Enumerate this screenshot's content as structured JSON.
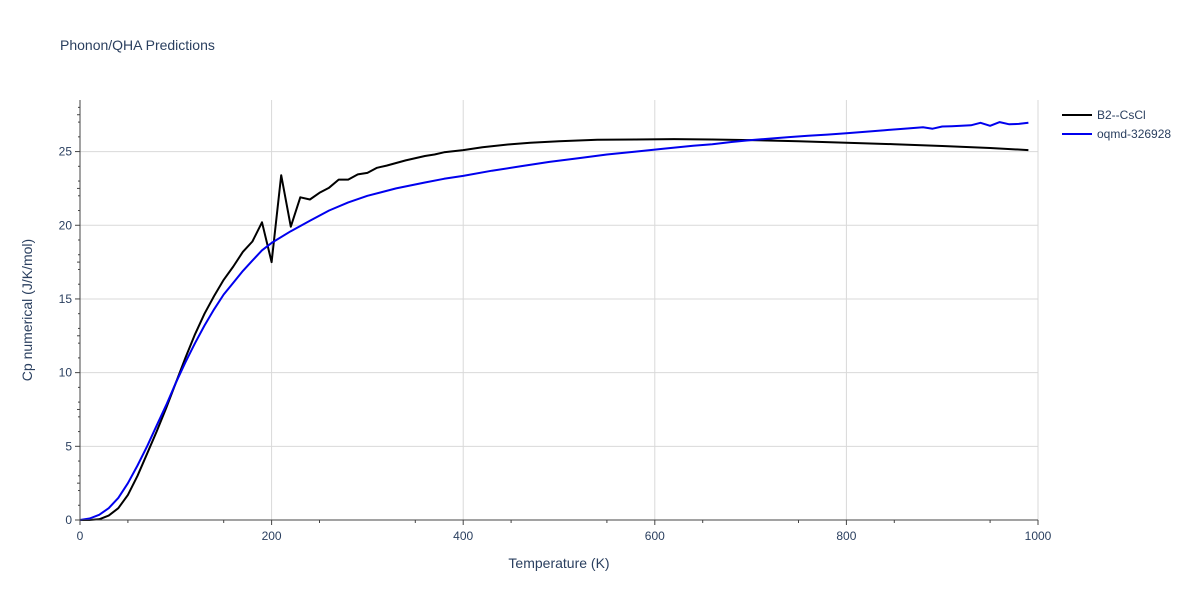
{
  "chart_data": {
    "type": "line",
    "title": "Phonon/QHA Predictions",
    "xlabel": "Temperature (K)",
    "ylabel": "Cp numerical (J/K/mol)",
    "xlim": [
      0,
      1000
    ],
    "ylim": [
      0,
      28.5
    ],
    "xticks": [
      0,
      200,
      400,
      600,
      800,
      1000
    ],
    "xtick_labels": [
      "0",
      "200",
      "400",
      "600",
      "800",
      "1000"
    ],
    "yticks": [
      0,
      5,
      10,
      15,
      20,
      25
    ],
    "ytick_labels": [
      "0",
      "5",
      "10",
      "15",
      "20",
      "25"
    ],
    "grid": true,
    "legend_position": "top-right",
    "series": [
      {
        "name": "B2--CsCl",
        "color": "#000000",
        "x": [
          0,
          10,
          20,
          30,
          40,
          50,
          60,
          70,
          80,
          90,
          100,
          110,
          120,
          130,
          140,
          150,
          160,
          170,
          180,
          190,
          200,
          210,
          220,
          230,
          240,
          250,
          260,
          270,
          280,
          290,
          300,
          310,
          320,
          340,
          360,
          370,
          380,
          400,
          420,
          450,
          470,
          500,
          540,
          580,
          620,
          660,
          700,
          750,
          800,
          850,
          900,
          950,
          990
        ],
        "y": [
          0,
          0,
          0.05,
          0.3,
          0.8,
          1.7,
          3.0,
          4.5,
          6.0,
          7.6,
          9.3,
          11.0,
          12.6,
          14.0,
          15.2,
          16.3,
          17.2,
          18.2,
          18.9,
          20.2,
          17.5,
          23.4,
          19.9,
          21.9,
          21.75,
          22.2,
          22.55,
          23.1,
          23.1,
          23.45,
          23.55,
          23.9,
          24.05,
          24.4,
          24.7,
          24.8,
          24.95,
          25.1,
          25.3,
          25.5,
          25.6,
          25.7,
          25.8,
          25.82,
          25.85,
          25.82,
          25.78,
          25.7,
          25.6,
          25.5,
          25.38,
          25.24,
          25.1
        ]
      },
      {
        "name": "oqmd-326928",
        "color": "#0000ee",
        "x": [
          0,
          10,
          20,
          30,
          40,
          50,
          60,
          70,
          80,
          90,
          100,
          110,
          120,
          130,
          140,
          150,
          160,
          170,
          180,
          190,
          200,
          220,
          240,
          260,
          280,
          300,
          330,
          360,
          380,
          400,
          430,
          460,
          490,
          520,
          550,
          580,
          610,
          640,
          660,
          680,
          700,
          720,
          740,
          760,
          780,
          800,
          820,
          840,
          860,
          880,
          890,
          900,
          910,
          920,
          930,
          940,
          950,
          960,
          970,
          980,
          990
        ],
        "y": [
          0,
          0.1,
          0.35,
          0.8,
          1.5,
          2.5,
          3.7,
          5.0,
          6.4,
          7.8,
          9.3,
          10.7,
          12.0,
          13.2,
          14.3,
          15.3,
          16.1,
          16.9,
          17.6,
          18.3,
          18.8,
          19.6,
          20.3,
          21.0,
          21.55,
          22.0,
          22.5,
          22.9,
          23.15,
          23.35,
          23.7,
          24.0,
          24.3,
          24.55,
          24.8,
          25.0,
          25.2,
          25.4,
          25.5,
          25.65,
          25.78,
          25.88,
          25.98,
          26.08,
          26.15,
          26.25,
          26.35,
          26.45,
          26.55,
          26.65,
          26.55,
          26.7,
          26.72,
          26.75,
          26.78,
          26.95,
          26.75,
          27.0,
          26.85,
          26.88,
          26.95
        ]
      }
    ]
  }
}
